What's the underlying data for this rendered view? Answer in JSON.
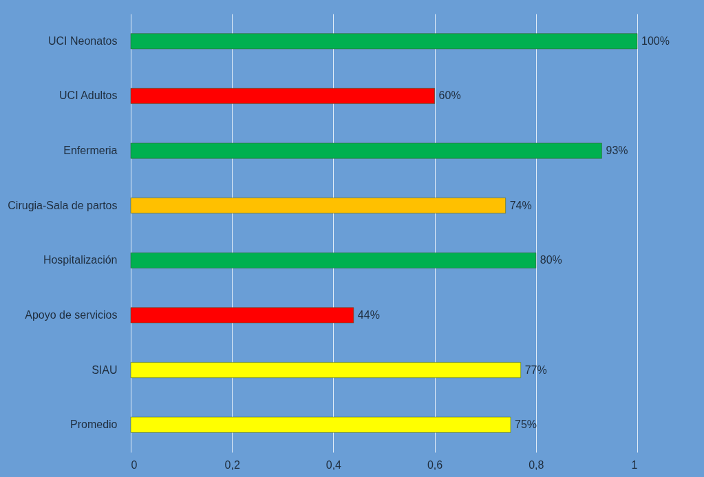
{
  "chart_data": {
    "type": "bar",
    "orientation": "horizontal",
    "categories": [
      "UCI Neonatos",
      "UCI Adultos",
      "Enfermeria",
      "Cirugia-Sala de partos",
      "Hospitalización",
      "Apoyo de servicios",
      "SIAU",
      "Promedio"
    ],
    "values": [
      1,
      0.6,
      0.93,
      0.74,
      0.8,
      0.44,
      0.77,
      0.75
    ],
    "colors": [
      "#00b050",
      "#ff0000",
      "#00b050",
      "#ffc000",
      "#00b050",
      "#ff0000",
      "#ffff00",
      "#ffff00"
    ],
    "value_labels": [
      "100%",
      "60%",
      "93%",
      "74%",
      "80%",
      "44%",
      "77%",
      "75%"
    ],
    "xlim": [
      0,
      1
    ],
    "xticks": [
      0,
      {
        "value": 0.2,
        "label": "0,2"
      },
      {
        "value": 0.4,
        "label": "0,4"
      },
      {
        "value": 0.6,
        "label": "0,6"
      },
      {
        "value": 0.8,
        "label": "0,8"
      },
      1
    ],
    "grid": "x"
  }
}
